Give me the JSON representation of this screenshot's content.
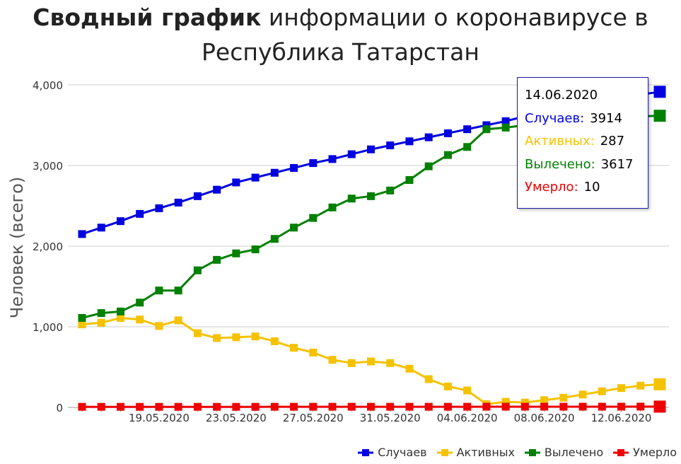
{
  "title_bold": "Сводный график",
  "title_rest": "информации о коронавирусе в",
  "title_line2": "Республика Татарстан",
  "tooltip": {
    "date": "14.06.2020",
    "rows": [
      {
        "label": "Случаев:",
        "value": "3914",
        "color": "#0000e0"
      },
      {
        "label": "Активных:",
        "value": "287",
        "color": "#f5c200"
      },
      {
        "label": "Вылечено:",
        "value": "3617",
        "color": "#008000"
      },
      {
        "label": "Умерло:",
        "value": "10",
        "color": "#ee0000"
      }
    ]
  },
  "chart_data": {
    "type": "line",
    "ylabel": "Человек (всего)",
    "ylim": [
      0,
      4000
    ],
    "yticks": [
      0,
      1000,
      2000,
      3000,
      4000
    ],
    "ytick_labels": [
      "0",
      "1,000",
      "2,000",
      "3,000",
      "4,000"
    ],
    "x": [
      "15.05.2020",
      "16.05.2020",
      "17.05.2020",
      "18.05.2020",
      "19.05.2020",
      "20.05.2020",
      "21.05.2020",
      "22.05.2020",
      "23.05.2020",
      "24.05.2020",
      "25.05.2020",
      "26.05.2020",
      "27.05.2020",
      "28.05.2020",
      "29.05.2020",
      "30.05.2020",
      "31.05.2020",
      "01.06.2020",
      "02.06.2020",
      "03.06.2020",
      "04.06.2020",
      "05.06.2020",
      "06.06.2020",
      "07.06.2020",
      "08.06.2020",
      "09.06.2020",
      "10.06.2020",
      "11.06.2020",
      "12.06.2020",
      "13.06.2020",
      "14.06.2020"
    ],
    "xtick_labels": [
      "19.05.2020",
      "23.05.2020",
      "27.05.2020",
      "31.05.2020",
      "04.06.2020",
      "08.06.2020",
      "12.06.2020"
    ],
    "grid": true,
    "legend_position": "bottom-right",
    "series": [
      {
        "name": "Случаев",
        "color": "#0000e0",
        "values": [
          2150,
          2230,
          2310,
          2400,
          2470,
          2540,
          2620,
          2700,
          2790,
          2850,
          2910,
          2970,
          3030,
          3080,
          3140,
          3200,
          3250,
          3300,
          3350,
          3400,
          3450,
          3500,
          3550,
          3610,
          3670,
          3720,
          3770,
          3820,
          3860,
          3880,
          3914
        ]
      },
      {
        "name": "Активных",
        "color": "#f5c200",
        "values": [
          1030,
          1050,
          1110,
          1090,
          1010,
          1080,
          920,
          860,
          870,
          880,
          820,
          740,
          680,
          590,
          550,
          570,
          550,
          480,
          350,
          260,
          210,
          40,
          70,
          60,
          90,
          120,
          160,
          200,
          240,
          270,
          287
        ]
      },
      {
        "name": "Вылечено",
        "color": "#008000",
        "values": [
          1110,
          1170,
          1190,
          1300,
          1450,
          1450,
          1700,
          1830,
          1910,
          1960,
          2090,
          2230,
          2350,
          2480,
          2590,
          2620,
          2690,
          2820,
          2990,
          3130,
          3230,
          3450,
          3470,
          3500,
          3530,
          3560,
          3580,
          3590,
          3600,
          3610,
          3617
        ]
      },
      {
        "name": "Умерло",
        "color": "#ee0000",
        "values": [
          7,
          7,
          7,
          7,
          7,
          7,
          7,
          7,
          7,
          7,
          8,
          8,
          8,
          8,
          8,
          8,
          8,
          8,
          8,
          8,
          8,
          9,
          9,
          9,
          9,
          9,
          9,
          9,
          9,
          10,
          10
        ]
      }
    ]
  }
}
